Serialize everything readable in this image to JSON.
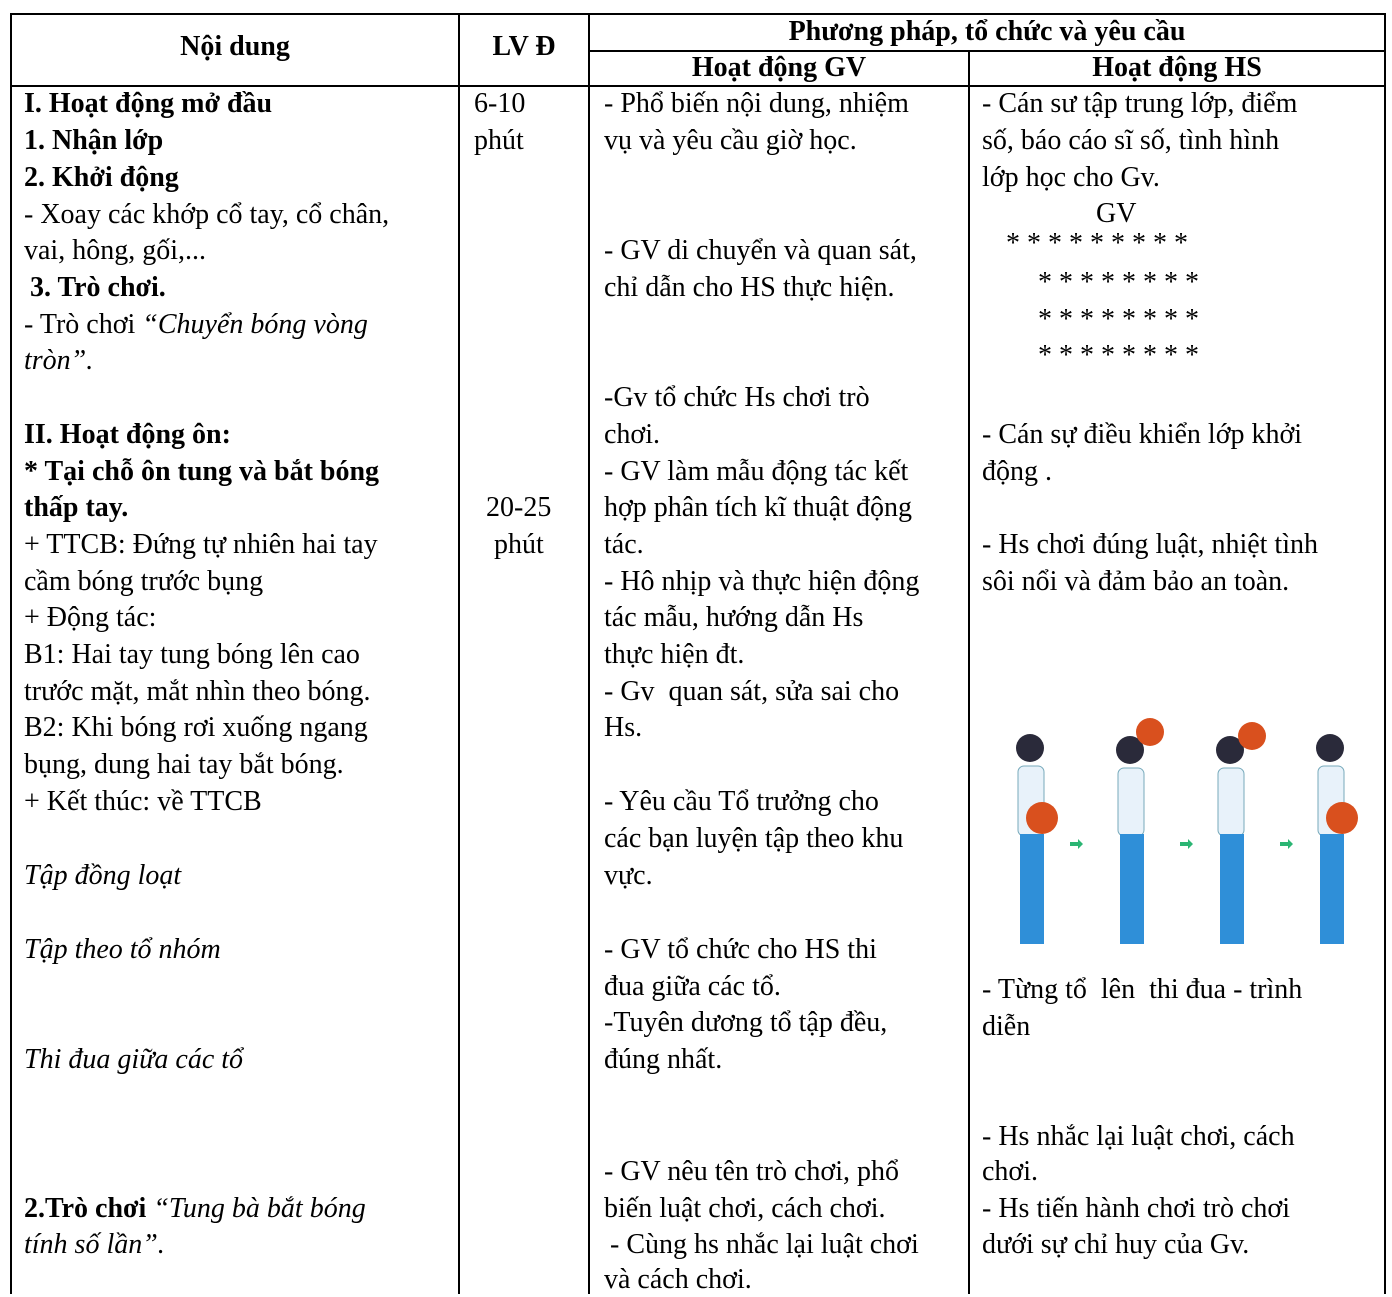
{
  "header": {
    "content": "Nội dung",
    "level": "LV Đ",
    "method": "Phương pháp, tổ chức và yêu cầu",
    "teacher": "Hoạt động GV",
    "student": "Hoạt động HS"
  },
  "body": {
    "content": [
      {
        "text": "I. Hoạt động mở đầu",
        "style": "bold"
      },
      {
        "text": "1. Nhận lớp",
        "style": "bold"
      },
      {
        "text": "2. Khởi động",
        "style": "bold"
      },
      {
        "text": "- Xoay các khớp cổ tay, cổ chân,"
      },
      {
        "text": "vai, hông, gối,..."
      },
      {
        "text": "3. Trò chơi.",
        "style": "bold"
      },
      {
        "parts": [
          {
            "text": "- Trò chơi "
          },
          {
            "text": "“Chuyển bóng vòng",
            "style": "italic"
          }
        ]
      },
      {
        "text": "tròn”.",
        "style": "italic"
      },
      {
        "text": "II. Hoạt động ôn:",
        "style": "bold"
      },
      {
        "text": "* Tại chỗ ôn tung và bắt bóng",
        "style": "bold"
      },
      {
        "text": "thấp tay.",
        "style": "bold"
      },
      {
        "text": "+ TTCB: Đứng tự nhiên hai tay"
      },
      {
        "text": "cầm bóng trước bụng"
      },
      {
        "text": "+ Động tác:"
      },
      {
        "text": "B1: Hai tay tung bóng lên cao"
      },
      {
        "text": "trước mặt, mắt nhìn theo bóng."
      },
      {
        "text": "B2: Khi bóng rơi xuống ngang"
      },
      {
        "text": "bụng, dung hai tay bắt bóng."
      },
      {
        "text": "+ Kết thúc: về TTCB"
      },
      {
        "text": "Tập đồng loạt",
        "style": "italic"
      },
      {
        "text": "Tập theo tổ nhóm",
        "style": "italic"
      },
      {
        "text": "Thi đua giữa các tổ",
        "style": "italic"
      },
      {
        "parts": [
          {
            "text": "2.Trò chơi ",
            "style": "bold"
          },
          {
            "text": "“Tung bà bắt bóng",
            "style": "italic"
          }
        ]
      },
      {
        "text": "tính số lần”.",
        "style": "italic"
      }
    ],
    "level": [
      {
        "text": "6-10"
      },
      {
        "text": "phút"
      },
      {
        "text": "20-25"
      },
      {
        "text": "phút"
      }
    ],
    "teacher": [
      {
        "text": "- Phổ biến nội dung, nhiệm"
      },
      {
        "text": "vụ và yêu cầu giờ học."
      },
      {
        "text": "- GV di chuyển và quan sát,"
      },
      {
        "text": "chỉ dẫn cho HS thực hiện."
      },
      {
        "text": "-Gv tổ chức Hs chơi trò"
      },
      {
        "text": "chơi."
      },
      {
        "text": "- GV làm mẫu động tác kết"
      },
      {
        "text": "hợp phân tích kĩ thuật động"
      },
      {
        "text": "tác."
      },
      {
        "text": "- Hô nhịp và thực hiện động"
      },
      {
        "text": "tác mẫu, hướng dẫn Hs"
      },
      {
        "text": "thực hiện đt."
      },
      {
        "text": "- Gv  quan sát, sửa sai cho"
      },
      {
        "text": "Hs."
      },
      {
        "text": "- Yêu cầu Tổ trưởng cho"
      },
      {
        "text": "các bạn luyện tập theo khu"
      },
      {
        "text": "vực."
      },
      {
        "text": "- GV tổ chức cho HS thi"
      },
      {
        "text": "đua giữa các tổ."
      },
      {
        "text": "-Tuyên dương tổ tập đều,"
      },
      {
        "text": "đúng nhất."
      },
      {
        "text": "- GV nêu tên trò chơi, phổ"
      },
      {
        "text": "biến luật chơi, cách chơi."
      },
      {
        "text": "- Cùng hs nhắc lại luật chơi"
      },
      {
        "text": "và cách chơi."
      }
    ],
    "student": [
      {
        "text": "- Cán sư tập trung lớp, điểm"
      },
      {
        "text": "số, báo cáo sĩ số, tình hình"
      },
      {
        "text": "lớp học cho Gv."
      },
      {
        "text": "GV"
      },
      {
        "text": "* * * * * * * * *"
      },
      {
        "text": "* * * * * * * *"
      },
      {
        "text": "* * * * * * * *"
      },
      {
        "text": "* * * * * * * *"
      },
      {
        "text": "- Cán sự điều khiển lớp khởi"
      },
      {
        "text": "động ."
      },
      {
        "text": "- Hs chơi đúng luật, nhiệt tình"
      },
      {
        "text": "sôi nổi và đảm bảo an toàn."
      },
      {
        "text": "- Từng tổ  lên  thi đua - trình"
      },
      {
        "text": "diễn"
      },
      {
        "text": "- Hs nhắc lại luật chơi, cách"
      },
      {
        "text": "chơi."
      },
      {
        "text": "- Hs tiến hành chơi trò chơi"
      },
      {
        "text": "dưới sự chỉ huy của Gv."
      }
    ]
  }
}
